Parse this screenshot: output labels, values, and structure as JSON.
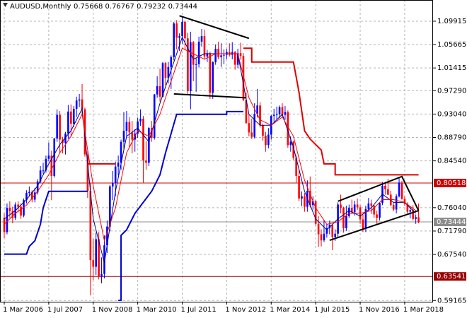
{
  "chart_data": {
    "type": "candlestick",
    "title": "AUDUSD,Monthly",
    "title_values": "0.75668 0.76767 0.79232 0.73444",
    "categories": [
      "1 Mar 2006",
      null,
      null,
      null,
      null,
      null,
      null,
      null,
      null,
      null,
      null,
      null,
      null,
      null,
      null,
      null,
      "1 Jul 2007",
      null,
      null,
      null,
      null,
      null,
      null,
      null,
      null,
      null,
      null,
      null,
      null,
      null,
      null,
      null,
      "1 Nov 2008",
      null,
      null,
      null,
      null,
      null,
      null,
      null,
      null,
      null,
      null,
      null,
      null,
      null,
      null,
      null,
      "1 Mar 2010",
      null,
      null,
      null,
      null,
      null,
      null,
      null,
      null,
      null,
      null,
      null,
      null,
      null,
      null,
      null,
      "1 Jul 2011",
      null,
      null,
      null,
      null,
      null,
      null,
      null,
      null,
      null,
      null,
      null,
      null,
      null,
      null,
      null,
      "1 Nov 2012",
      null,
      null,
      null,
      null,
      null,
      null,
      null,
      null,
      null,
      null,
      null,
      null,
      null,
      null,
      null,
      "1 Mar 2014",
      null,
      null,
      null,
      null,
      null,
      null,
      null,
      null,
      null,
      null,
      null,
      null,
      null,
      null,
      null,
      "1 Jul 2015",
      null,
      null,
      null,
      null,
      null,
      null,
      null,
      null,
      null,
      null,
      null,
      null,
      null,
      null,
      null,
      "1 Nov 2016",
      null,
      null,
      null,
      null,
      null,
      null,
      null,
      null,
      null,
      null,
      null,
      null,
      null,
      null,
      null,
      "1 Mar 2018",
      null,
      null,
      null,
      null,
      null
    ],
    "open": [
      0.742,
      0.716,
      0.76,
      0.754,
      0.742,
      0.766,
      0.762,
      0.746,
      0.774,
      0.787,
      0.789,
      0.775,
      0.788,
      0.808,
      0.828,
      0.828,
      0.849,
      0.855,
      0.818,
      0.886,
      0.929,
      0.884,
      0.878,
      0.895,
      0.935,
      0.913,
      0.94,
      0.955,
      0.957,
      0.939,
      0.857,
      0.791,
      0.665,
      0.653,
      0.703,
      0.635,
      0.64,
      0.692,
      0.726,
      0.799,
      0.805,
      0.835,
      0.842,
      0.88,
      0.9,
      0.916,
      0.897,
      0.884,
      0.895,
      0.917,
      0.922,
      0.846,
      0.842,
      0.905,
      0.887,
      0.966,
      0.981,
      0.962,
      1.023,
      0.996,
      1.016,
      1.034,
      1.095,
      1.069,
      1.072,
      1.098,
      1.068,
      0.972,
      1.061,
      1.02,
      1.021,
      1.062,
      1.072,
      1.035,
      1.041,
      0.969,
      1.025,
      1.049,
      1.034,
      1.037,
      1.038,
      1.043,
      1.038,
      1.043,
      1.02,
      1.041,
      1.036,
      0.956,
      0.914,
      0.897,
      0.889,
      0.931,
      0.946,
      0.91,
      0.891,
      0.874,
      0.893,
      0.927,
      0.929,
      0.93,
      0.943,
      0.929,
      0.934,
      0.874,
      0.88,
      0.851,
      0.818,
      0.777,
      0.781,
      0.762,
      0.791,
      0.765,
      0.772,
      0.731,
      0.712,
      0.701,
      0.713,
      0.723,
      0.729,
      0.707,
      0.713,
      0.766,
      0.76,
      0.723,
      0.745,
      0.76,
      0.752,
      0.766,
      0.761,
      0.739,
      0.722,
      0.758,
      0.768,
      0.764,
      0.748,
      0.742,
      0.769,
      0.8,
      0.794,
      0.784,
      0.765,
      0.757,
      0.781,
      0.806,
      0.776,
      0.767,
      0.753,
      0.756,
      0.74,
      0.743
    ],
    "high": [
      0.75,
      0.768,
      0.772,
      0.762,
      0.77,
      0.772,
      0.768,
      0.777,
      0.792,
      0.799,
      0.792,
      0.796,
      0.812,
      0.836,
      0.842,
      0.855,
      0.879,
      0.864,
      0.887,
      0.939,
      0.936,
      0.889,
      0.898,
      0.947,
      0.948,
      0.945,
      0.962,
      0.967,
      0.985,
      0.942,
      0.863,
      0.806,
      0.704,
      0.715,
      0.716,
      0.67,
      0.71,
      0.737,
      0.802,
      0.827,
      0.844,
      0.855,
      0.884,
      0.934,
      0.936,
      0.925,
      0.918,
      0.903,
      0.924,
      0.939,
      0.927,
      0.881,
      0.907,
      0.918,
      0.967,
      0.999,
      1.013,
      1.025,
      1.025,
      1.025,
      1.037,
      1.098,
      1.101,
      1.077,
      1.108,
      1.1,
      1.078,
      1.08,
      1.063,
      1.033,
      1.071,
      1.085,
      1.084,
      1.047,
      1.044,
      1.026,
      1.057,
      1.062,
      1.059,
      1.048,
      1.049,
      1.059,
      1.061,
      1.045,
      1.049,
      1.06,
      1.041,
      0.969,
      0.93,
      0.922,
      0.95,
      0.976,
      0.952,
      0.913,
      0.898,
      0.905,
      0.929,
      0.94,
      0.944,
      0.946,
      0.95,
      0.945,
      0.937,
      0.89,
      0.882,
      0.855,
      0.829,
      0.79,
      0.787,
      0.81,
      0.817,
      0.781,
      0.774,
      0.745,
      0.721,
      0.738,
      0.731,
      0.737,
      0.729,
      0.721,
      0.77,
      0.784,
      0.762,
      0.764,
      0.766,
      0.775,
      0.773,
      0.777,
      0.765,
      0.748,
      0.764,
      0.778,
      0.775,
      0.765,
      0.755,
      0.77,
      0.807,
      0.807,
      0.813,
      0.791,
      0.77,
      0.785,
      0.814,
      0.809,
      0.781,
      0.77,
      0.762,
      0.765,
      0.748,
      0.768
    ],
    "low": [
      0.705,
      0.712,
      0.742,
      0.732,
      0.738,
      0.752,
      0.74,
      0.743,
      0.768,
      0.782,
      0.77,
      0.77,
      0.784,
      0.805,
      0.822,
      0.824,
      0.845,
      0.774,
      0.815,
      0.88,
      0.86,
      0.859,
      0.857,
      0.885,
      0.889,
      0.907,
      0.925,
      0.943,
      0.93,
      0.853,
      0.778,
      0.601,
      0.629,
      0.638,
      0.63,
      0.623,
      0.632,
      0.678,
      0.718,
      0.774,
      0.781,
      0.819,
      0.829,
      0.866,
      0.889,
      0.869,
      0.859,
      0.862,
      0.887,
      0.909,
      0.806,
      0.829,
      0.836,
      0.88,
      0.884,
      0.96,
      0.953,
      0.961,
      0.983,
      0.986,
      0.976,
      1.028,
      1.048,
      1.045,
      1.058,
      1.048,
      0.966,
      0.939,
      0.99,
      0.971,
      1.015,
      1.053,
      1.03,
      1.025,
      0.958,
      0.958,
      1.02,
      1.03,
      1.016,
      1.021,
      1.03,
      1.035,
      1.03,
      1.011,
      1.014,
      1.029,
      0.954,
      0.913,
      0.89,
      0.885,
      0.886,
      0.924,
      0.906,
      0.882,
      0.862,
      0.868,
      0.884,
      0.916,
      0.92,
      0.923,
      0.926,
      0.92,
      0.869,
      0.862,
      0.847,
      0.806,
      0.772,
      0.763,
      0.753,
      0.753,
      0.761,
      0.757,
      0.728,
      0.689,
      0.69,
      0.698,
      0.706,
      0.712,
      0.683,
      0.7,
      0.707,
      0.75,
      0.715,
      0.718,
      0.742,
      0.749,
      0.746,
      0.756,
      0.731,
      0.716,
      0.716,
      0.754,
      0.749,
      0.742,
      0.731,
      0.737,
      0.765,
      0.784,
      0.783,
      0.763,
      0.754,
      0.75,
      0.779,
      0.775,
      0.764,
      0.75,
      0.741,
      0.737,
      0.731,
      0.732
    ],
    "close": [
      0.716,
      0.76,
      0.754,
      0.742,
      0.766,
      0.762,
      0.746,
      0.774,
      0.787,
      0.789,
      0.775,
      0.788,
      0.808,
      0.828,
      0.828,
      0.849,
      0.855,
      0.818,
      0.886,
      0.929,
      0.884,
      0.878,
      0.895,
      0.935,
      0.913,
      0.94,
      0.955,
      0.957,
      0.939,
      0.857,
      0.791,
      0.665,
      0.653,
      0.703,
      0.635,
      0.64,
      0.692,
      0.726,
      0.799,
      0.805,
      0.835,
      0.842,
      0.88,
      0.9,
      0.916,
      0.897,
      0.884,
      0.895,
      0.917,
      0.922,
      0.846,
      0.842,
      0.905,
      0.887,
      0.966,
      0.981,
      0.962,
      1.023,
      0.996,
      1.016,
      1.034,
      1.095,
      1.069,
      1.072,
      1.098,
      1.068,
      0.972,
      1.061,
      1.02,
      1.021,
      1.062,
      1.072,
      1.035,
      1.041,
      0.969,
      1.025,
      1.049,
      1.034,
      1.037,
      1.038,
      1.043,
      1.038,
      1.043,
      1.02,
      1.041,
      1.036,
      0.956,
      0.914,
      0.897,
      0.889,
      0.931,
      0.946,
      0.91,
      0.891,
      0.874,
      0.893,
      0.927,
      0.929,
      0.93,
      0.943,
      0.929,
      0.934,
      0.874,
      0.88,
      0.851,
      0.818,
      0.777,
      0.781,
      0.762,
      0.791,
      0.765,
      0.772,
      0.731,
      0.712,
      0.701,
      0.713,
      0.723,
      0.729,
      0.707,
      0.713,
      0.766,
      0.76,
      0.723,
      0.745,
      0.76,
      0.752,
      0.766,
      0.761,
      0.739,
      0.722,
      0.758,
      0.768,
      0.764,
      0.748,
      0.742,
      0.769,
      0.8,
      0.794,
      0.784,
      0.765,
      0.757,
      0.781,
      0.806,
      0.776,
      0.767,
      0.753,
      0.756,
      0.74,
      0.743,
      0.734
    ],
    "up_color": "#0000ff",
    "down_color": "#ff0000",
    "ylim": [
      0.592,
      1.1325
    ],
    "yticks": [
      1.09915,
      1.05665,
      1.01415,
      {
        "value": 0.9729,
        "label": "0.97290"
      },
      {
        "value": 0.9304,
        "label": "0.93040"
      },
      {
        "value": 0.8879,
        "label": "0.88790"
      },
      {
        "value": 0.8454,
        "label": "0.84540"
      },
      {
        "value": 0.7604,
        "label": "0.76040"
      },
      {
        "value": 0.7179,
        "label": "0.71790"
      },
      {
        "value": 0.6754,
        "label": "0.67540"
      },
      0.59165
    ],
    "grid": true,
    "overlays": [
      {
        "color": "#000080",
        "width": 1,
        "x": [
          0,
          4,
          8,
          12,
          16,
          20,
          24,
          28,
          32,
          36,
          40,
          44,
          48,
          52,
          56,
          60,
          64,
          68,
          72,
          76,
          80,
          84,
          88,
          92,
          96,
          100,
          104,
          108,
          112,
          116,
          120,
          124,
          128,
          132,
          136,
          140,
          144,
          148
        ],
        "values": [
          0.74,
          0.755,
          0.775,
          0.8,
          0.84,
          0.875,
          0.9,
          0.94,
          0.74,
          0.66,
          0.79,
          0.89,
          0.905,
          0.88,
          0.95,
          1.01,
          1.07,
          1.03,
          1.04,
          1.04,
          1.04,
          1.04,
          0.93,
          0.91,
          0.91,
          0.93,
          0.87,
          0.79,
          0.74,
          0.72,
          0.74,
          0.755,
          0.745,
          0.76,
          0.785,
          0.77,
          0.77,
          0.75
        ]
      },
      {
        "color": "#ff0000",
        "width": 1,
        "x": [
          0,
          4,
          8,
          12,
          16,
          20,
          24,
          28,
          32,
          36,
          40,
          44,
          48,
          52,
          56,
          60,
          64,
          68,
          72,
          76,
          80,
          84,
          88,
          92,
          96,
          100,
          104,
          108,
          112,
          116,
          120,
          124,
          128,
          132,
          136,
          140,
          144,
          148
        ],
        "values": [
          0.73,
          0.75,
          0.765,
          0.79,
          0.82,
          0.86,
          0.89,
          0.93,
          0.8,
          0.7,
          0.76,
          0.86,
          0.9,
          0.89,
          0.93,
          0.99,
          1.05,
          1.04,
          1.03,
          1.04,
          1.04,
          1.04,
          0.96,
          0.92,
          0.91,
          0.925,
          0.89,
          0.81,
          0.76,
          0.73,
          0.735,
          0.75,
          0.75,
          0.755,
          0.775,
          0.775,
          0.77,
          0.755
        ]
      },
      {
        "color": "#dd0000",
        "width": 2,
        "x": [
          30,
          40,
          null,
          86,
          89,
          89,
          104,
          106,
          108,
          110,
          114,
          115,
          119,
          119,
          149
        ],
        "values": [
          0.84,
          0.84,
          null,
          1.05,
          1.05,
          1.025,
          1.025,
          0.97,
          0.9,
          0.885,
          0.865,
          0.84,
          0.84,
          0.82,
          0.82
        ]
      },
      {
        "color": "#0000cc",
        "width": 2,
        "x": [
          0,
          8,
          9,
          11,
          13,
          14,
          16,
          30,
          null,
          41,
          42,
          42,
          44,
          47,
          53,
          56,
          58,
          62,
          80,
          80,
          86
        ],
        "values": [
          0.676,
          0.676,
          0.69,
          0.7,
          0.73,
          0.76,
          0.79,
          0.79,
          null,
          0.592,
          0.592,
          0.71,
          0.72,
          0.75,
          0.79,
          0.82,
          0.86,
          0.93,
          0.93,
          0.935,
          0.935
        ]
      },
      {
        "color": "#000000",
        "width": 2,
        "x": [
          63,
          88
        ],
        "values": [
          1.109,
          1.068
        ]
      },
      {
        "color": "#000000",
        "width": 2,
        "x": [
          61,
          87
        ],
        "values": [
          0.967,
          0.96
        ]
      },
      {
        "color": "#000000",
        "width": 2,
        "x": [
          117,
          149
        ],
        "values": [
          0.701,
          0.755
        ]
      },
      {
        "color": "#000000",
        "width": 2,
        "x": [
          120,
          143,
          149
        ],
        "values": [
          0.772,
          0.817,
          0.755
        ]
      }
    ],
    "levels": [
      {
        "value": 0.80518,
        "color": "#cc0000"
      },
      {
        "value": 0.63541,
        "color": "#990000"
      },
      {
        "value": 0.73444,
        "color": "#8c8c8c"
      }
    ]
  }
}
